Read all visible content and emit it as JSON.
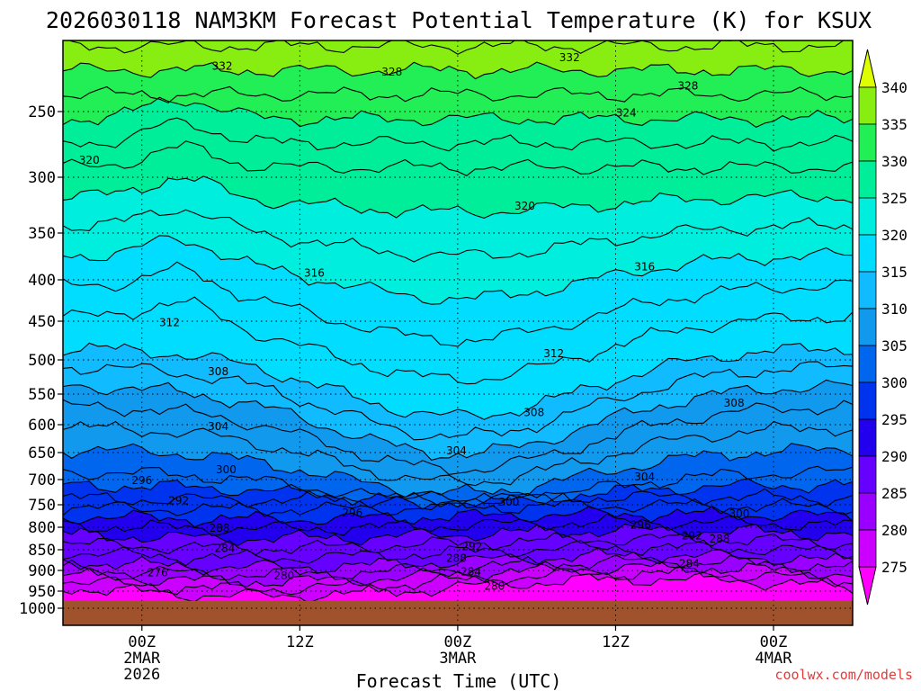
{
  "chart_data": {
    "type": "heatmap",
    "title": "2026030118 NAM3KM Forecast Potential Temperature (K) for KSUX",
    "xlabel": "Forecast Time (UTC)",
    "ylabel": "",
    "credit": "coolwx.com/models",
    "y_axis": {
      "scale": "log",
      "range": [
        1000,
        200
      ],
      "ticks": [
        "250",
        "300",
        "350",
        "400",
        "450",
        "500",
        "550",
        "600",
        "650",
        "700",
        "750",
        "800",
        "850",
        "900",
        "950",
        "1000"
      ]
    },
    "x_axis": {
      "range_hours": [
        0,
        60
      ],
      "ticks": [
        {
          "hour": 6,
          "line1": "00Z",
          "line2": "2MAR",
          "line3": "2026"
        },
        {
          "hour": 18,
          "line1": "12Z",
          "line2": "",
          "line3": ""
        },
        {
          "hour": 30,
          "line1": "00Z",
          "line2": "3MAR",
          "line3": ""
        },
        {
          "hour": 42,
          "line1": "12Z",
          "line2": "",
          "line3": ""
        },
        {
          "hour": 54,
          "line1": "00Z",
          "line2": "4MAR",
          "line3": ""
        }
      ]
    },
    "colorbar": {
      "levels": [
        "275",
        "280",
        "285",
        "290",
        "295",
        "300",
        "305",
        "310",
        "315",
        "320",
        "325",
        "330",
        "335",
        "340"
      ],
      "colors": [
        "#ff00ff",
        "#cc00ff",
        "#9900ff",
        "#6600ff",
        "#2200ee",
        "#0033ee",
        "#0066ee",
        "#1199ee",
        "#11bbff",
        "#00ddff",
        "#00eedd",
        "#00ee99",
        "#22ee55",
        "#88ee11",
        "#ddff00"
      ]
    },
    "contour_labels": [
      {
        "text": "332",
        "hour": 12.1,
        "hPa": 218
      },
      {
        "text": "328",
        "hour": 25.0,
        "hPa": 222
      },
      {
        "text": "332",
        "hour": 38.5,
        "hPa": 212
      },
      {
        "text": "328",
        "hour": 47.5,
        "hPa": 232
      },
      {
        "text": "324",
        "hour": 42.8,
        "hPa": 251
      },
      {
        "text": "320",
        "hour": 2.0,
        "hPa": 287
      },
      {
        "text": "320",
        "hour": 35.1,
        "hPa": 326
      },
      {
        "text": "316",
        "hour": 19.1,
        "hPa": 393
      },
      {
        "text": "316",
        "hour": 44.2,
        "hPa": 386
      },
      {
        "text": "312",
        "hour": 8.1,
        "hPa": 452
      },
      {
        "text": "312",
        "hour": 37.3,
        "hPa": 492
      },
      {
        "text": "308",
        "hour": 11.8,
        "hPa": 517
      },
      {
        "text": "308",
        "hour": 35.8,
        "hPa": 580
      },
      {
        "text": "308",
        "hour": 51.0,
        "hPa": 565
      },
      {
        "text": "304",
        "hour": 11.8,
        "hPa": 603
      },
      {
        "text": "304",
        "hour": 29.9,
        "hPa": 647
      },
      {
        "text": "304",
        "hour": 44.2,
        "hPa": 695
      },
      {
        "text": "300",
        "hour": 12.4,
        "hPa": 682
      },
      {
        "text": "300",
        "hour": 33.9,
        "hPa": 745
      },
      {
        "text": "300",
        "hour": 51.4,
        "hPa": 770
      },
      {
        "text": "296",
        "hour": 6.0,
        "hPa": 702
      },
      {
        "text": "296",
        "hour": 22.0,
        "hPa": 768
      },
      {
        "text": "296",
        "hour": 43.9,
        "hPa": 795
      },
      {
        "text": "292",
        "hour": 8.8,
        "hPa": 742
      },
      {
        "text": "292",
        "hour": 31.1,
        "hPa": 843
      },
      {
        "text": "292",
        "hour": 47.8,
        "hPa": 819
      },
      {
        "text": "288",
        "hour": 11.9,
        "hPa": 802
      },
      {
        "text": "288",
        "hour": 29.9,
        "hPa": 871
      },
      {
        "text": "288",
        "hour": 49.9,
        "hPa": 826
      },
      {
        "text": "284",
        "hour": 12.3,
        "hPa": 847
      },
      {
        "text": "284",
        "hour": 31.0,
        "hPa": 903
      },
      {
        "text": "284",
        "hour": 47.6,
        "hPa": 884
      },
      {
        "text": "280",
        "hour": 16.8,
        "hPa": 913
      },
      {
        "text": "280",
        "hour": 32.8,
        "hPa": 938
      },
      {
        "text": "276",
        "hour": 7.2,
        "hPa": 905
      }
    ]
  }
}
